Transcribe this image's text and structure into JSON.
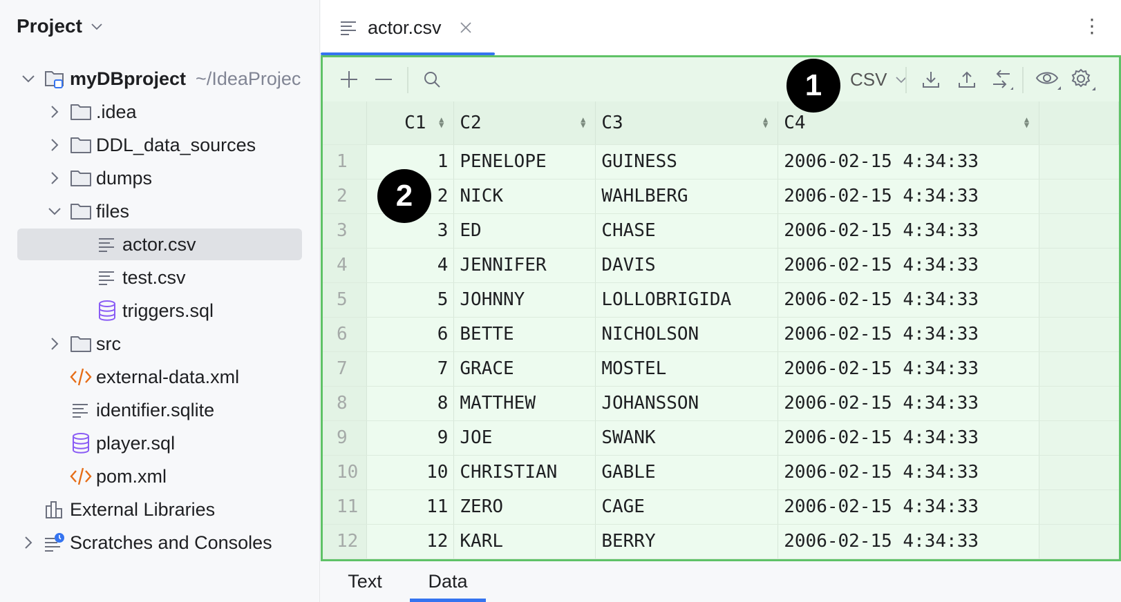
{
  "sidebar": {
    "title": "Project",
    "tree": [
      {
        "label": "myDBproject",
        "suffix": "~/IdeaProjec",
        "level": 0,
        "icon": "project-folder-icon",
        "expanded": true
      },
      {
        "label": ".idea",
        "level": 1,
        "icon": "folder-icon",
        "expanded": false
      },
      {
        "label": "DDL_data_sources",
        "level": 1,
        "icon": "folder-icon",
        "expanded": false
      },
      {
        "label": "dumps",
        "level": 1,
        "icon": "folder-icon",
        "expanded": false
      },
      {
        "label": "files",
        "level": 1,
        "icon": "folder-icon",
        "expanded": true
      },
      {
        "label": "actor.csv",
        "level": 2,
        "icon": "text-file-icon",
        "selected": true
      },
      {
        "label": "test.csv",
        "level": 2,
        "icon": "text-file-icon"
      },
      {
        "label": "triggers.sql",
        "level": 2,
        "icon": "database-icon"
      },
      {
        "label": "src",
        "level": 1,
        "icon": "folder-icon",
        "expanded": false
      },
      {
        "label": "external-data.xml",
        "level": 1,
        "icon": "xml-file-icon"
      },
      {
        "label": "identifier.sqlite",
        "level": 1,
        "icon": "text-file-icon"
      },
      {
        "label": "player.sql",
        "level": 1,
        "icon": "database-icon"
      },
      {
        "label": "pom.xml",
        "level": 1,
        "icon": "xml-file-icon"
      },
      {
        "label": "External Libraries",
        "level": 0,
        "icon": "library-icon"
      },
      {
        "label": "Scratches and Consoles",
        "level": 0,
        "icon": "scratches-icon",
        "expanded": false
      }
    ]
  },
  "editor": {
    "tab_label": "actor.csv",
    "format_label": "CSV",
    "columns": [
      "C1",
      "C2",
      "C3",
      "C4"
    ],
    "rows": [
      [
        "1",
        "PENELOPE",
        "GUINESS",
        "2006-02-15 4:34:33"
      ],
      [
        "2",
        "NICK",
        "WAHLBERG",
        "2006-02-15 4:34:33"
      ],
      [
        "3",
        "ED",
        "CHASE",
        "2006-02-15 4:34:33"
      ],
      [
        "4",
        "JENNIFER",
        "DAVIS",
        "2006-02-15 4:34:33"
      ],
      [
        "5",
        "JOHNNY",
        "LOLLOBRIGIDA",
        "2006-02-15 4:34:33"
      ],
      [
        "6",
        "BETTE",
        "NICHOLSON",
        "2006-02-15 4:34:33"
      ],
      [
        "7",
        "GRACE",
        "MOSTEL",
        "2006-02-15 4:34:33"
      ],
      [
        "8",
        "MATTHEW",
        "JOHANSSON",
        "2006-02-15 4:34:33"
      ],
      [
        "9",
        "JOE",
        "SWANK",
        "2006-02-15 4:34:33"
      ],
      [
        "10",
        "CHRISTIAN",
        "GABLE",
        "2006-02-15 4:34:33"
      ],
      [
        "11",
        "ZERO",
        "CAGE",
        "2006-02-15 4:34:33"
      ],
      [
        "12",
        "KARL",
        "BERRY",
        "2006-02-15 4:34:33"
      ]
    ],
    "bottom_tabs": [
      {
        "label": "Text",
        "active": false
      },
      {
        "label": "Data",
        "active": true
      }
    ]
  },
  "badges": [
    "1",
    "2"
  ],
  "colors": {
    "accent": "#3574f0",
    "grid_border": "#5fc267",
    "grid_bg": "#e8f7ea",
    "selection": "#dfe1e5"
  }
}
